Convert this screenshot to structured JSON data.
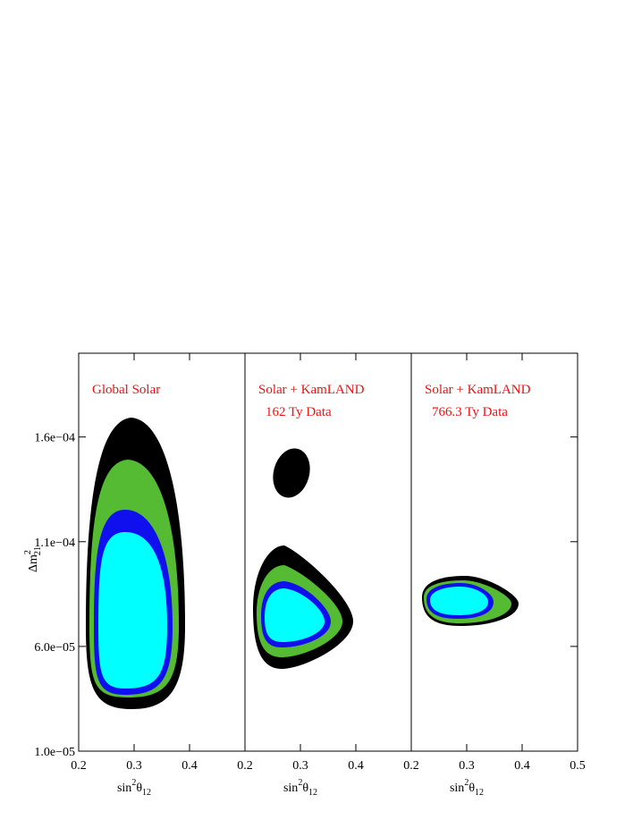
{
  "chart_data": [
    {
      "type": "contour",
      "annotations": [
        "Global Solar"
      ],
      "xlim": [
        0.2,
        0.5
      ],
      "xticks": [
        0.2,
        0.3,
        0.4
      ],
      "x_label": {
        "text": "sin",
        "sup": "2",
        "text2": "θ",
        "sub": "12"
      },
      "ylim": [
        1e-05,
        0.0002
      ],
      "yticks": [
        {
          "value": 1e-05,
          "label": "1.0e−05"
        },
        {
          "value": 6e-05,
          "label": "6.0e−05"
        },
        {
          "value": 0.00011,
          "label": "1.1e−04"
        },
        {
          "value": 0.00016,
          "label": "1.6e−04"
        }
      ],
      "y_label": {
        "text": "Δm",
        "sup": "2",
        "sub": "21"
      }
    },
    {
      "type": "contour",
      "annotations": [
        "Solar + KamLAND",
        "162 Ty Data"
      ],
      "xlim": [
        0.2,
        0.5
      ],
      "xticks": [
        0.2,
        0.3,
        0.4
      ],
      "x_label": {
        "text": "sin",
        "sup": "2",
        "text2": "θ",
        "sub": "12"
      }
    },
    {
      "type": "contour",
      "annotations": [
        "Solar + KamLAND",
        "766.3 Ty Data"
      ],
      "xlim": [
        0.2,
        0.5
      ],
      "xticks": [
        0.2,
        0.3,
        0.4,
        0.5
      ],
      "x_label": {
        "text": "sin",
        "sup": "2",
        "text2": "θ",
        "sub": "12"
      }
    }
  ]
}
